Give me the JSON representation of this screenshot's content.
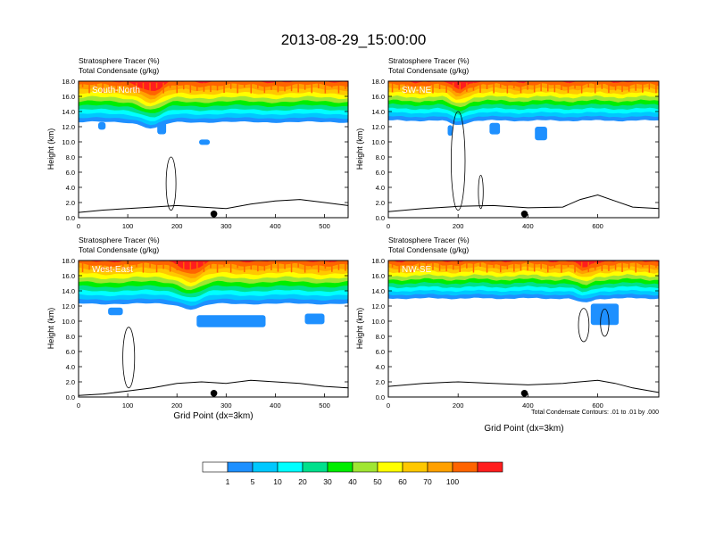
{
  "title": "2013-08-29_15:00:00",
  "colors": {
    "levels": [
      "#ffffff",
      "#1e90ff",
      "#00c8ff",
      "#00ffff",
      "#00e08c",
      "#00ee00",
      "#a0e632",
      "#ffff00",
      "#ffc800",
      "#ffa000",
      "#ff6400",
      "#ff1e1e"
    ],
    "terrain_line": "#000000",
    "panel_label": "#ffffff"
  },
  "colorbar": {
    "labels": [
      "1",
      "5",
      "10",
      "20",
      "30",
      "40",
      "50",
      "60",
      "70",
      "100"
    ]
  },
  "footnote": "Total Condensate Contours: .01 to .01 by .000",
  "chart_data": [
    {
      "type": "heatmap",
      "panel_label": "South-North",
      "subtitle_1": "Stratosphere Tracer   (%)",
      "subtitle_2": "Total Condensate   (g/kg)",
      "ylabel": "Height (km)",
      "xlabel": "",
      "xlim": [
        0,
        548
      ],
      "ylim": [
        0,
        18
      ],
      "x_ticks": [
        "0",
        "100",
        "200",
        "300",
        "400",
        "500"
      ],
      "y_ticks": [
        "0.0",
        "2.0",
        "4.0",
        "6.0",
        "8.0",
        "10.0",
        "12.0",
        "14.0",
        "16.0",
        "18.0"
      ],
      "marker_x": 275,
      "terrain": {
        "x": [
          0,
          50,
          100,
          150,
          200,
          250,
          300,
          350,
          400,
          450,
          500,
          548
        ],
        "y": [
          0.7,
          1.0,
          1.2,
          1.4,
          1.6,
          1.4,
          1.2,
          1.8,
          2.2,
          2.4,
          2.0,
          1.6
        ]
      },
      "tracer_base_km": 12.6,
      "tracer_dip": {
        "x": 150,
        "depth_km": 1.4
      },
      "tracer_patches": [
        {
          "x": 40,
          "y": 11.6,
          "w": 15,
          "h": 1.0
        },
        {
          "x": 160,
          "y": 11.0,
          "w": 18,
          "h": 1.6
        },
        {
          "x": 245,
          "y": 9.6,
          "w": 22,
          "h": 0.7
        }
      ],
      "condensate_contours": [
        {
          "cx": 188,
          "cy": 4.5,
          "rx": 10,
          "ry": 3.5
        }
      ]
    },
    {
      "type": "heatmap",
      "panel_label": "SW-NE",
      "subtitle_1": "Stratosphere Tracer   (%)",
      "subtitle_2": "Total Condensate   (g/kg)",
      "ylabel": "Height (km)",
      "xlabel": "",
      "xlim": [
        0,
        775
      ],
      "ylim": [
        0,
        18
      ],
      "x_ticks": [
        "0",
        "200",
        "400",
        "600"
      ],
      "y_ticks": [
        "0.0",
        "2.0",
        "4.0",
        "6.0",
        "8.0",
        "10.0",
        "12.0",
        "14.0",
        "16.0",
        "18.0"
      ],
      "marker_x": 390,
      "terrain": {
        "x": [
          0,
          100,
          200,
          300,
          400,
          500,
          550,
          600,
          650,
          700,
          775
        ],
        "y": [
          0.8,
          1.2,
          1.5,
          1.6,
          1.3,
          1.4,
          2.4,
          3.0,
          2.2,
          1.4,
          1.2
        ]
      },
      "tracer_base_km": 12.8,
      "tracer_dip": {
        "x": 200,
        "depth_km": 1.0
      },
      "tracer_patches": [
        {
          "x": 170,
          "y": 10.8,
          "w": 14,
          "h": 1.4
        },
        {
          "x": 290,
          "y": 11.0,
          "w": 30,
          "h": 1.5
        },
        {
          "x": 420,
          "y": 10.2,
          "w": 35,
          "h": 1.8
        }
      ],
      "condensate_contours": [
        {
          "cx": 200,
          "cy": 7.5,
          "rx": 20,
          "ry": 6.5
        },
        {
          "cx": 265,
          "cy": 3.4,
          "rx": 7,
          "ry": 2.2
        }
      ]
    },
    {
      "type": "heatmap",
      "panel_label": "West-East",
      "subtitle_1": "Stratosphere Tracer   (%)",
      "subtitle_2": "Total Condensate   (g/kg)",
      "ylabel": "Height (km)",
      "xlabel": "Grid Point (dx=3km)",
      "xlim": [
        0,
        548
      ],
      "ylim": [
        0,
        18
      ],
      "x_ticks": [
        "0",
        "100",
        "200",
        "300",
        "400",
        "500"
      ],
      "y_ticks": [
        "0.0",
        "2.0",
        "4.0",
        "6.0",
        "8.0",
        "10.0",
        "12.0",
        "14.0",
        "16.0",
        "18.0"
      ],
      "marker_x": 275,
      "terrain": {
        "x": [
          0,
          50,
          100,
          150,
          200,
          250,
          300,
          350,
          400,
          450,
          500,
          548
        ],
        "y": [
          0.2,
          0.4,
          0.8,
          1.2,
          1.8,
          2.0,
          1.8,
          2.2,
          2.0,
          1.8,
          1.4,
          1.2
        ]
      },
      "tracer_base_km": 12.3,
      "tracer_dip": {
        "x": 230,
        "depth_km": 1.2
      },
      "tracer_patches": [
        {
          "x": 60,
          "y": 10.8,
          "w": 30,
          "h": 1.0
        },
        {
          "x": 240,
          "y": 9.2,
          "w": 140,
          "h": 1.6
        },
        {
          "x": 460,
          "y": 9.6,
          "w": 40,
          "h": 1.4
        }
      ],
      "condensate_contours": [
        {
          "cx": 102,
          "cy": 5.2,
          "rx": 12,
          "ry": 4.0
        }
      ]
    },
    {
      "type": "heatmap",
      "panel_label": "NW-SE",
      "subtitle_1": "Stratosphere Tracer   (%)",
      "subtitle_2": "Total Condensate   (g/kg)",
      "ylabel": "Height (km)",
      "xlabel": "Grid Point (dx=3km)",
      "xlim": [
        0,
        775
      ],
      "ylim": [
        0,
        18
      ],
      "x_ticks": [
        "0",
        "200",
        "400",
        "600"
      ],
      "y_ticks": [
        "0.0",
        "2.0",
        "4.0",
        "6.0",
        "8.0",
        "10.0",
        "12.0",
        "14.0",
        "16.0",
        "18.0"
      ],
      "marker_x": 390,
      "terrain": {
        "x": [
          0,
          100,
          200,
          300,
          400,
          500,
          600,
          650,
          700,
          775
        ],
        "y": [
          1.4,
          1.8,
          2.0,
          1.8,
          1.6,
          1.8,
          2.2,
          1.8,
          1.2,
          0.6
        ]
      },
      "tracer_base_km": 13.0,
      "tracer_dip": {
        "x": 560,
        "depth_km": 1.0
      },
      "tracer_patches": [
        {
          "x": 580,
          "y": 9.5,
          "w": 80,
          "h": 2.8
        }
      ],
      "condensate_contours": [
        {
          "cx": 560,
          "cy": 9.5,
          "rx": 15,
          "ry": 2.2
        },
        {
          "cx": 620,
          "cy": 9.8,
          "rx": 12,
          "ry": 1.8
        }
      ]
    }
  ]
}
